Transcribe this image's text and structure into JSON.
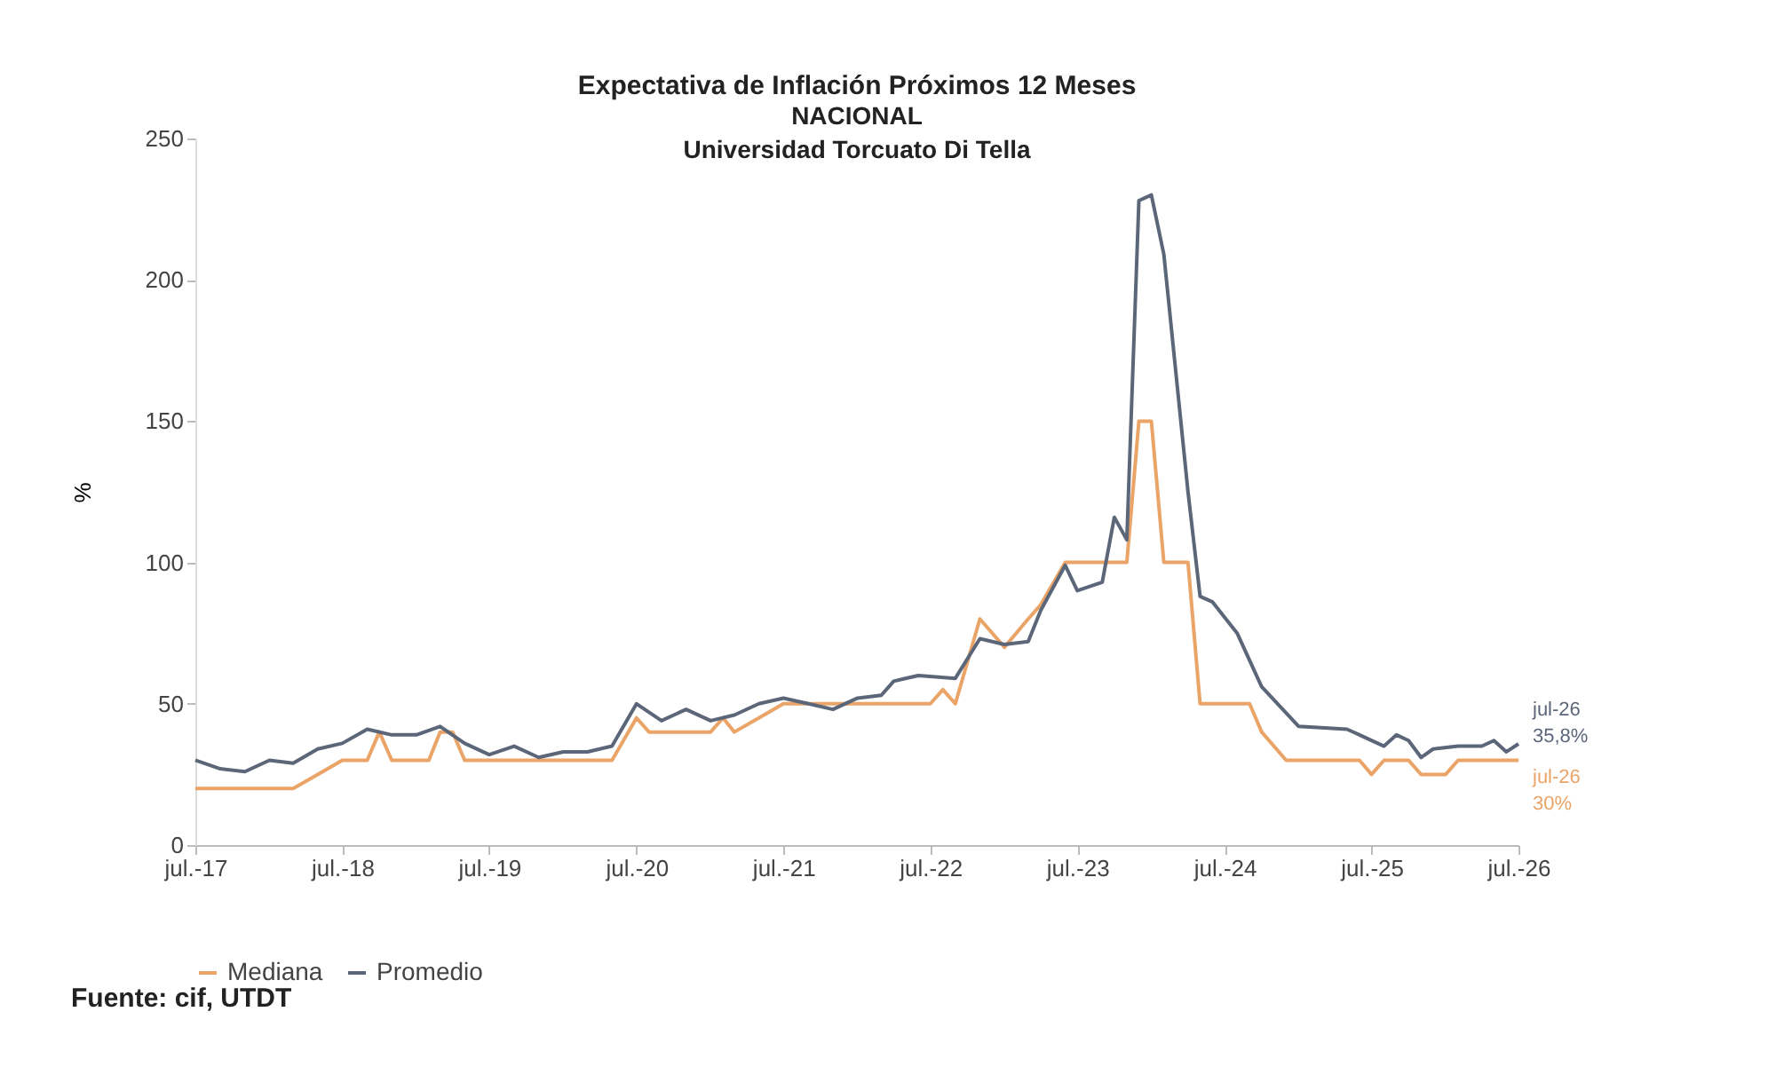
{
  "chart_data": {
    "type": "line",
    "title": "Expectativa de Inflación Próximos 12 Meses",
    "subtitle": "NACIONAL\nUniversidad Torcuato Di Tella",
    "ylabel": "%",
    "xlim": [
      "2017-07",
      "2026-07"
    ],
    "xticks": [
      {
        "value": "2017-07",
        "label": "jul.-17"
      },
      {
        "value": "2018-07",
        "label": "jul.-18"
      },
      {
        "value": "2019-07",
        "label": "jul.-19"
      },
      {
        "value": "2020-07",
        "label": "jul.-20"
      },
      {
        "value": "2021-07",
        "label": "jul.-21"
      },
      {
        "value": "2022-07",
        "label": "jul.-22"
      },
      {
        "value": "2023-07",
        "label": "jul.-23"
      },
      {
        "value": "2024-07",
        "label": "jul.-24"
      },
      {
        "value": "2025-07",
        "label": "jul.-25"
      },
      {
        "value": "2026-07",
        "label": "jul.-26"
      }
    ],
    "ylim": [
      0,
      250
    ],
    "yticks": [
      0,
      50,
      100,
      150,
      200,
      250
    ],
    "grid": false,
    "legend": "bottom",
    "line_style": "solid",
    "series": [
      {
        "name": "Mediana",
        "color": "#eba467",
        "x": [
          "2017-07",
          "2018-03",
          "2018-05",
          "2018-07",
          "2018-09",
          "2018-10",
          "2018-11",
          "2019-02",
          "2019-03",
          "2019-04",
          "2019-05",
          "2020-05",
          "2020-07",
          "2020-08",
          "2021-01",
          "2021-02",
          "2021-03",
          "2021-05",
          "2021-07",
          "2022-07",
          "2022-08",
          "2022-09",
          "2022-11",
          "2023-01",
          "2023-03",
          "2023-04",
          "2023-06",
          "2023-11",
          "2023-12",
          "2024-01",
          "2024-02",
          "2024-04",
          "2024-05",
          "2024-09",
          "2024-10",
          "2024-12",
          "2025-06",
          "2025-07",
          "2025-08",
          "2025-10",
          "2025-11",
          "2026-01",
          "2026-02",
          "2026-07"
        ],
        "values": [
          20,
          20,
          25,
          30,
          30,
          40,
          30,
          30,
          40,
          40,
          30,
          30,
          45,
          40,
          40,
          45,
          40,
          45,
          50,
          50,
          55,
          50,
          80,
          70,
          80,
          85,
          100,
          100,
          150,
          150,
          100,
          100,
          50,
          50,
          40,
          30,
          30,
          25,
          30,
          30,
          25,
          25,
          30,
          30
        ]
      },
      {
        "name": "Promedio",
        "color": "#5b6679",
        "x": [
          "2017-07",
          "2017-09",
          "2017-11",
          "2018-01",
          "2018-03",
          "2018-05",
          "2018-07",
          "2018-09",
          "2018-11",
          "2019-01",
          "2019-03",
          "2019-05",
          "2019-07",
          "2019-09",
          "2019-11",
          "2020-01",
          "2020-03",
          "2020-05",
          "2020-07",
          "2020-09",
          "2020-11",
          "2021-01",
          "2021-03",
          "2021-05",
          "2021-07",
          "2021-09",
          "2021-11",
          "2022-01",
          "2022-03",
          "2022-04",
          "2022-06",
          "2022-09",
          "2022-11",
          "2023-01",
          "2023-03",
          "2023-04",
          "2023-06",
          "2023-07",
          "2023-09",
          "2023-10",
          "2023-11",
          "2023-12",
          "2024-01",
          "2024-02",
          "2024-04",
          "2024-05",
          "2024-06",
          "2024-08",
          "2024-10",
          "2025-01",
          "2025-05",
          "2025-06",
          "2025-08",
          "2025-09",
          "2025-10",
          "2025-11",
          "2025-12",
          "2026-02",
          "2026-04",
          "2026-05",
          "2026-06",
          "2026-07"
        ],
        "values": [
          30,
          27,
          26,
          30,
          29,
          34,
          36,
          41,
          39,
          39,
          42,
          36,
          32,
          35,
          31,
          33,
          33,
          35,
          50,
          44,
          48,
          44,
          46,
          50,
          52,
          50,
          48,
          52,
          53,
          58,
          60,
          59,
          73,
          71,
          72,
          83,
          99,
          90,
          93,
          116,
          108,
          228,
          230,
          209,
          125,
          88,
          86,
          75,
          56,
          42,
          41,
          39,
          35,
          39,
          37,
          31,
          34,
          35,
          35,
          37,
          33,
          35.8
        ]
      }
    ],
    "annotations": [
      {
        "text": "jul-26\n35,8%",
        "x": "2026-07",
        "y": 35.8
      },
      {
        "text": "jul-26\n30%",
        "x": "2026-07",
        "y": 30
      },
      "Fuente: cif, UTDT"
    ]
  }
}
